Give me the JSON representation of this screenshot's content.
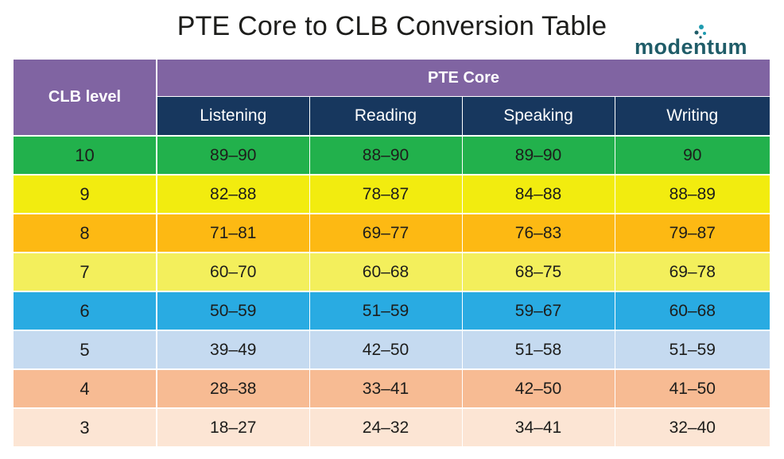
{
  "title": "PTE Core to CLB Conversion Table",
  "logo": {
    "text": "modentum",
    "icon": "modentum-dots-icon",
    "color": "#1f5c68"
  },
  "table": {
    "clb_header": "CLB level",
    "group_header": "PTE Core",
    "columns": [
      "Listening",
      "Reading",
      "Speaking",
      "Writing"
    ],
    "header_colors": {
      "group": "#8064a2",
      "columns": "#17375e"
    },
    "rows": [
      {
        "level": "10",
        "cells": [
          "89–90",
          "88–90",
          "89–90",
          "90"
        ],
        "color": "#22b14c"
      },
      {
        "level": "9",
        "cells": [
          "82–88",
          "78–87",
          "84–88",
          "88–89"
        ],
        "color": "#f2ec0f"
      },
      {
        "level": "8",
        "cells": [
          "71–81",
          "69–77",
          "76–83",
          "79–87"
        ],
        "color": "#fdb913"
      },
      {
        "level": "7",
        "cells": [
          "60–70",
          "60–68",
          "68–75",
          "69–78"
        ],
        "color": "#f3ef5c"
      },
      {
        "level": "6",
        "cells": [
          "50–59",
          "51–59",
          "59–67",
          "60–68"
        ],
        "color": "#29abe2"
      },
      {
        "level": "5",
        "cells": [
          "39–49",
          "42–50",
          "51–58",
          "51–59"
        ],
        "color": "#c5daf0"
      },
      {
        "level": "4",
        "cells": [
          "28–38",
          "33–41",
          "42–50",
          "41–50"
        ],
        "color": "#f7bb93"
      },
      {
        "level": "3",
        "cells": [
          "18–27",
          "24–32",
          "34–41",
          "32–40"
        ],
        "color": "#fce5d4"
      }
    ]
  }
}
